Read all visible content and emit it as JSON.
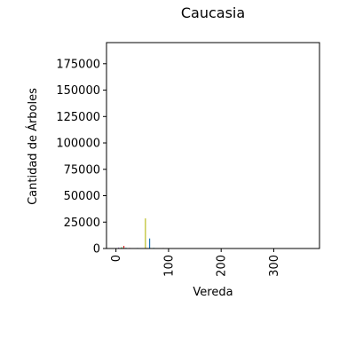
{
  "chart_data": {
    "type": "bar",
    "title": "Caucasia",
    "xlabel": "Vereda",
    "ylabel": "Cantidad de Árboles",
    "xlim": [
      -18,
      387
    ],
    "ylim": [
      0,
      195000
    ],
    "x_ticks": [
      0,
      100,
      200,
      300
    ],
    "y_ticks": [
      0,
      25000,
      50000,
      75000,
      100000,
      125000,
      150000,
      175000
    ],
    "grid": false,
    "legend": "none",
    "bars": [
      {
        "x": 2,
        "value": 300,
        "color": "#1f77b4"
      },
      {
        "x": 5,
        "value": 900,
        "color": "#9467bd"
      },
      {
        "x": 8,
        "value": 500,
        "color": "#8c564b"
      },
      {
        "x": 11,
        "value": 1200,
        "color": "#2ca02c"
      },
      {
        "x": 15,
        "value": 2500,
        "color": "#d62728"
      },
      {
        "x": 19,
        "value": 700,
        "color": "#17becf"
      },
      {
        "x": 22,
        "value": 400,
        "color": "#7f7f7f"
      },
      {
        "x": 26,
        "value": 600,
        "color": "#e377c2"
      },
      {
        "x": 33,
        "value": 300,
        "color": "#ff7f0e"
      },
      {
        "x": 41,
        "value": 500,
        "color": "#1f77b4"
      },
      {
        "x": 48,
        "value": 400,
        "color": "#2ca02c"
      },
      {
        "x": 56,
        "value": 28500,
        "color": "#bcbd22"
      },
      {
        "x": 64,
        "value": 9500,
        "color": "#1f77b4"
      },
      {
        "x": 72,
        "value": 600,
        "color": "#17becf"
      },
      {
        "x": 80,
        "value": 300,
        "color": "#9467bd"
      },
      {
        "x": 90,
        "value": 500,
        "color": "#8c564b"
      },
      {
        "x": 100,
        "value": 400,
        "color": "#ff7f0e"
      },
      {
        "x": 110,
        "value": 250,
        "color": "#2ca02c"
      },
      {
        "x": 125,
        "value": 200,
        "color": "#d62728"
      },
      {
        "x": 140,
        "value": 300,
        "color": "#7f7f7f"
      },
      {
        "x": 165,
        "value": 150,
        "color": "#e377c2"
      },
      {
        "x": 190,
        "value": 200,
        "color": "#1f77b4"
      },
      {
        "x": 220,
        "value": 150,
        "color": "#bcbd22"
      },
      {
        "x": 260,
        "value": 120,
        "color": "#17becf"
      },
      {
        "x": 300,
        "value": 150,
        "color": "#9467bd"
      },
      {
        "x": 340,
        "value": 100,
        "color": "#8c564b"
      }
    ]
  }
}
